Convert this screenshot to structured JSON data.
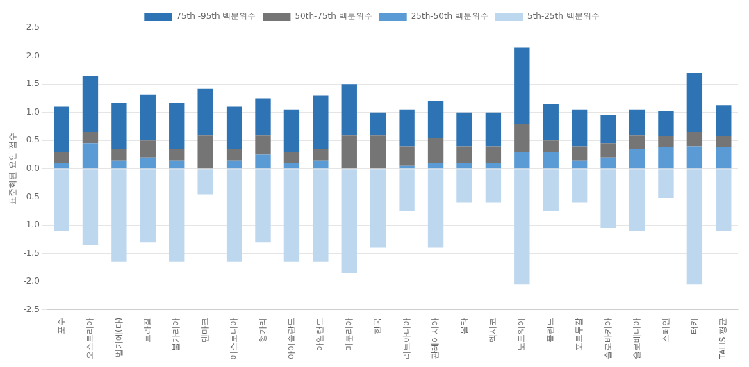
{
  "chart_data": {
    "type": "bar",
    "stacked": true,
    "ylabel": "표준화된 요인 점수",
    "categories": [
      "포수",
      "오스트리아",
      "벨기에(다)",
      "브라질",
      "불가리아",
      "덴마크",
      "에스토니아",
      "형가리",
      "아이슬란드",
      "아일랜드",
      "미분리아",
      "한국",
      "리트아니아",
      "관레이시아",
      "몰타",
      "멕시코",
      "노르웨이",
      "폴란드",
      "포르투갈",
      "슬로바키아",
      "슬로베니아",
      "스페인",
      "터키",
      "TALIS 평균"
    ],
    "series": [
      {
        "name": "75th -95th 백분위수",
        "color": "#2E74B5",
        "values": [
          0.8,
          1.0,
          0.82,
          0.82,
          0.82,
          0.82,
          0.75,
          0.65,
          0.75,
          0.95,
          0.9,
          0.4,
          0.65,
          0.65,
          0.6,
          0.6,
          1.35,
          0.65,
          0.65,
          0.5,
          0.45,
          0.45,
          1.05,
          0.55
        ]
      },
      {
        "name": "50th-75th 백분위수",
        "color": "#757575",
        "values": [
          0.2,
          0.2,
          0.2,
          0.3,
          0.2,
          0.6,
          0.2,
          0.35,
          0.2,
          0.2,
          0.6,
          0.6,
          0.35,
          0.45,
          0.3,
          0.3,
          0.5,
          0.2,
          0.25,
          0.25,
          0.25,
          0.2,
          0.25,
          0.2
        ]
      },
      {
        "name": "25th-50th 백분위수",
        "color": "#5B9BD5",
        "values": [
          0.1,
          0.45,
          0.15,
          0.2,
          0.15,
          0.0,
          0.15,
          0.25,
          0.1,
          0.15,
          0.0,
          0.0,
          0.05,
          0.1,
          0.1,
          0.1,
          0.3,
          0.3,
          0.15,
          0.2,
          0.35,
          0.38,
          0.4,
          0.38
        ]
      },
      {
        "name": "5th-25th 백분위수",
        "color": "#BDD7EE",
        "values": [
          -1.1,
          -1.35,
          -1.65,
          -1.3,
          -1.65,
          -0.45,
          -1.65,
          -1.3,
          -1.65,
          -1.65,
          -1.85,
          -1.4,
          -0.75,
          -1.4,
          -0.6,
          -0.6,
          -2.05,
          -0.75,
          -0.6,
          -1.05,
          -1.1,
          -0.52,
          -2.05,
          -1.1
        ]
      }
    ],
    "ylim": [
      -2.5,
      2.5
    ],
    "yticks": [
      -2.5,
      {
        "value": -2.0,
        "label": "-2.0"
      },
      -1.5,
      {
        "value": -1.0,
        "label": "-1.0"
      },
      -0.5,
      {
        "value": 0.0,
        "label": "0.0"
      },
      0.5,
      {
        "value": 1.0,
        "label": "1.0"
      },
      1.5,
      {
        "value": 2.0,
        "label": "2.0"
      },
      2.5
    ],
    "grid": true,
    "legend": "top"
  }
}
